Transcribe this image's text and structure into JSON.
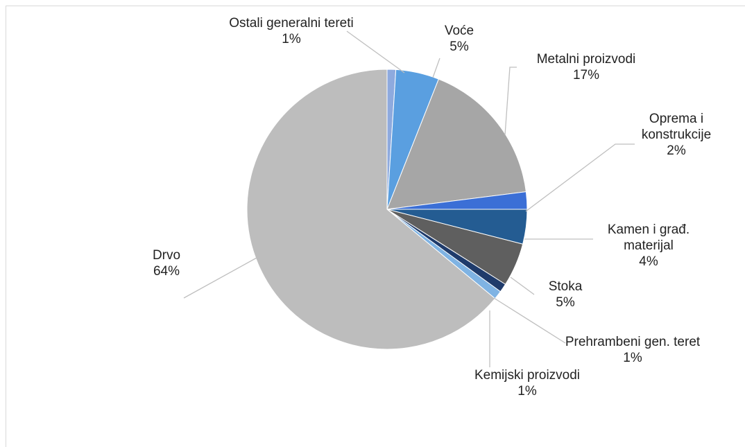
{
  "chart_data": {
    "type": "pie",
    "categories": [
      "Ostali generalni tereti",
      "Voće",
      "Metalni proizvodi",
      "Oprema i konstrukcije",
      "Kamen i građ. materijal",
      "Stoka",
      "Prehrambeni gen. teret",
      "Kemijski proizvodi",
      "Drvo"
    ],
    "values": [
      1,
      5,
      17,
      2,
      4,
      5,
      1,
      1,
      64
    ],
    "value_labels": [
      "1%",
      "5%",
      "17%",
      "2%",
      "4%",
      "5%",
      "1%",
      "1%",
      "64%"
    ],
    "colors": [
      "#8eaade",
      "#5a9fe0",
      "#a6a6a6",
      "#3b6fd6",
      "#245c92",
      "#5f5f5f",
      "#1f3b6b",
      "#7fb3e3",
      "#bdbdbd"
    ]
  }
}
